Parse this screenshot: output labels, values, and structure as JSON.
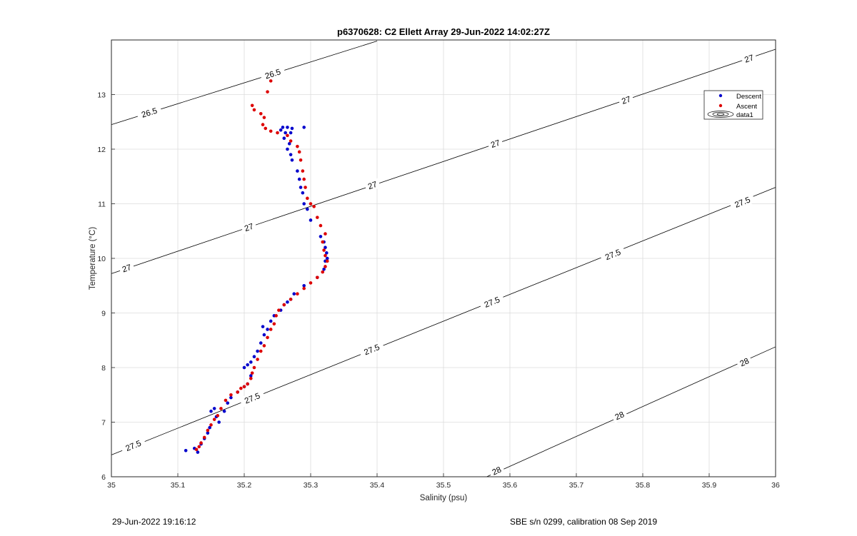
{
  "chart_data": {
    "type": "scatter",
    "title": "p6370628: C2 Ellett Array 29-Jun-2022 14:02:27Z",
    "xlabel": "Salinity (psu)",
    "ylabel": "Temperature (°C)",
    "xlim": [
      35,
      36
    ],
    "ylim": [
      6,
      14
    ],
    "x_ticks": [
      "35",
      "35.1",
      "35.2",
      "35.3",
      "35.4",
      "35.5",
      "35.6",
      "35.7",
      "35.8",
      "35.9",
      "36"
    ],
    "y_ticks": [
      "6",
      "7",
      "8",
      "9",
      "10",
      "11",
      "12",
      "13"
    ],
    "grid": true,
    "legend_placement": "top-right",
    "legend": [
      "Descent",
      "Ascent",
      "data1"
    ],
    "colors": {
      "descent": "#0000cc",
      "ascent": "#dd0000",
      "contour": "#000000",
      "grid": "#dcdcdc"
    },
    "series": [
      {
        "name": "Descent",
        "points": [
          [
            35.112,
            6.48
          ],
          [
            35.125,
            6.52
          ],
          [
            35.13,
            6.45
          ],
          [
            35.135,
            6.6
          ],
          [
            35.14,
            6.7
          ],
          [
            35.145,
            6.8
          ],
          [
            35.148,
            6.9
          ],
          [
            35.15,
            7.2
          ],
          [
            35.155,
            7.25
          ],
          [
            35.158,
            7.1
          ],
          [
            35.162,
            7.0
          ],
          [
            35.17,
            7.2
          ],
          [
            35.175,
            7.35
          ],
          [
            35.18,
            7.45
          ],
          [
            35.19,
            7.55
          ],
          [
            35.2,
            7.65
          ],
          [
            35.205,
            7.7
          ],
          [
            35.21,
            7.85
          ],
          [
            35.2,
            8.0
          ],
          [
            35.205,
            8.05
          ],
          [
            35.21,
            8.1
          ],
          [
            35.215,
            8.2
          ],
          [
            35.22,
            8.3
          ],
          [
            35.225,
            8.45
          ],
          [
            35.23,
            8.6
          ],
          [
            35.228,
            8.75
          ],
          [
            35.235,
            8.7
          ],
          [
            35.24,
            8.85
          ],
          [
            35.245,
            8.95
          ],
          [
            35.255,
            9.05
          ],
          [
            35.26,
            9.15
          ],
          [
            35.265,
            9.2
          ],
          [
            35.27,
            9.25
          ],
          [
            35.275,
            9.35
          ],
          [
            35.29,
            9.5
          ],
          [
            35.31,
            9.65
          ],
          [
            35.32,
            9.8
          ],
          [
            35.322,
            9.95
          ],
          [
            35.325,
            10.0
          ],
          [
            35.324,
            10.1
          ],
          [
            35.322,
            10.2
          ],
          [
            35.32,
            10.3
          ],
          [
            35.315,
            10.4
          ],
          [
            35.3,
            10.7
          ],
          [
            35.295,
            10.9
          ],
          [
            35.29,
            11.0
          ],
          [
            35.288,
            11.2
          ],
          [
            35.285,
            11.3
          ],
          [
            35.283,
            11.45
          ],
          [
            35.28,
            11.6
          ],
          [
            35.272,
            11.8
          ],
          [
            35.27,
            11.9
          ],
          [
            35.265,
            12.0
          ],
          [
            35.268,
            12.1
          ],
          [
            35.26,
            12.2
          ],
          [
            35.262,
            12.3
          ],
          [
            35.255,
            12.35
          ],
          [
            35.258,
            12.4
          ],
          [
            35.265,
            12.4
          ],
          [
            35.272,
            12.38
          ],
          [
            35.27,
            12.3
          ],
          [
            35.29,
            12.4
          ]
        ]
      },
      {
        "name": "Ascent",
        "points": [
          [
            35.128,
            6.5
          ],
          [
            35.132,
            6.55
          ],
          [
            35.135,
            6.62
          ],
          [
            35.14,
            6.72
          ],
          [
            35.145,
            6.85
          ],
          [
            35.15,
            6.95
          ],
          [
            35.155,
            7.05
          ],
          [
            35.16,
            7.12
          ],
          [
            35.165,
            7.25
          ],
          [
            35.172,
            7.4
          ],
          [
            35.18,
            7.5
          ],
          [
            35.19,
            7.55
          ],
          [
            35.195,
            7.62
          ],
          [
            35.2,
            7.65
          ],
          [
            35.205,
            7.7
          ],
          [
            35.21,
            7.8
          ],
          [
            35.212,
            7.9
          ],
          [
            35.215,
            8.0
          ],
          [
            35.22,
            8.15
          ],
          [
            35.225,
            8.3
          ],
          [
            35.23,
            8.4
          ],
          [
            35.235,
            8.55
          ],
          [
            35.24,
            8.7
          ],
          [
            35.245,
            8.8
          ],
          [
            35.248,
            8.95
          ],
          [
            35.252,
            9.05
          ],
          [
            35.26,
            9.15
          ],
          [
            35.27,
            9.25
          ],
          [
            35.28,
            9.35
          ],
          [
            35.29,
            9.45
          ],
          [
            35.3,
            9.55
          ],
          [
            35.31,
            9.65
          ],
          [
            35.318,
            9.75
          ],
          [
            35.322,
            9.85
          ],
          [
            35.325,
            9.95
          ],
          [
            35.322,
            10.05
          ],
          [
            35.32,
            10.15
          ],
          [
            35.318,
            10.3
          ],
          [
            35.322,
            10.45
          ],
          [
            35.315,
            10.6
          ],
          [
            35.31,
            10.75
          ],
          [
            35.305,
            10.95
          ],
          [
            35.3,
            11.0
          ],
          [
            35.295,
            11.1
          ],
          [
            35.292,
            11.3
          ],
          [
            35.29,
            11.45
          ],
          [
            35.288,
            11.6
          ],
          [
            35.285,
            11.8
          ],
          [
            35.283,
            11.95
          ],
          [
            35.28,
            12.05
          ],
          [
            35.27,
            12.15
          ],
          [
            35.265,
            12.25
          ],
          [
            35.25,
            12.3
          ],
          [
            35.24,
            12.33
          ],
          [
            35.232,
            12.38
          ],
          [
            35.228,
            12.45
          ],
          [
            35.23,
            12.58
          ],
          [
            35.225,
            12.65
          ],
          [
            35.215,
            12.72
          ],
          [
            35.212,
            12.8
          ],
          [
            35.235,
            13.05
          ],
          [
            35.24,
            13.25
          ]
        ]
      }
    ],
    "contours": [
      {
        "label": "26.5",
        "line": [
          [
            35.0,
            12.45
          ],
          [
            35.4,
            13.98
          ]
        ],
        "label_points": [
          [
            35.057,
            12.67
          ],
          [
            35.243,
            13.38
          ]
        ]
      },
      {
        "label": "27",
        "line": [
          [
            35.0,
            9.72
          ],
          [
            36.0,
            13.83
          ]
        ],
        "label_points": [
          [
            35.023,
            9.82
          ],
          [
            35.207,
            10.57
          ],
          [
            35.393,
            11.34
          ],
          [
            35.578,
            12.1
          ],
          [
            35.775,
            12.9
          ],
          [
            35.96,
            13.66
          ]
        ]
      },
      {
        "label": "27.5",
        "line": [
          [
            35.0,
            6.4
          ],
          [
            36.0,
            11.3
          ]
        ],
        "label_points": [
          [
            35.033,
            6.57
          ],
          [
            35.212,
            7.44
          ],
          [
            35.392,
            8.33
          ],
          [
            35.573,
            9.2
          ],
          [
            35.755,
            10.07
          ],
          [
            35.95,
            11.03
          ]
        ]
      },
      {
        "label": "28",
        "line": [
          [
            35.565,
            6.0
          ],
          [
            36.0,
            8.38
          ]
        ],
        "label_points": [
          [
            35.58,
            6.11
          ],
          [
            35.765,
            7.12
          ],
          [
            35.953,
            8.1
          ]
        ]
      }
    ]
  },
  "footer": {
    "timestamp": "29-Jun-2022 19:16:12",
    "instrument": "SBE s/n 0299, calibration 08 Sep 2019"
  }
}
